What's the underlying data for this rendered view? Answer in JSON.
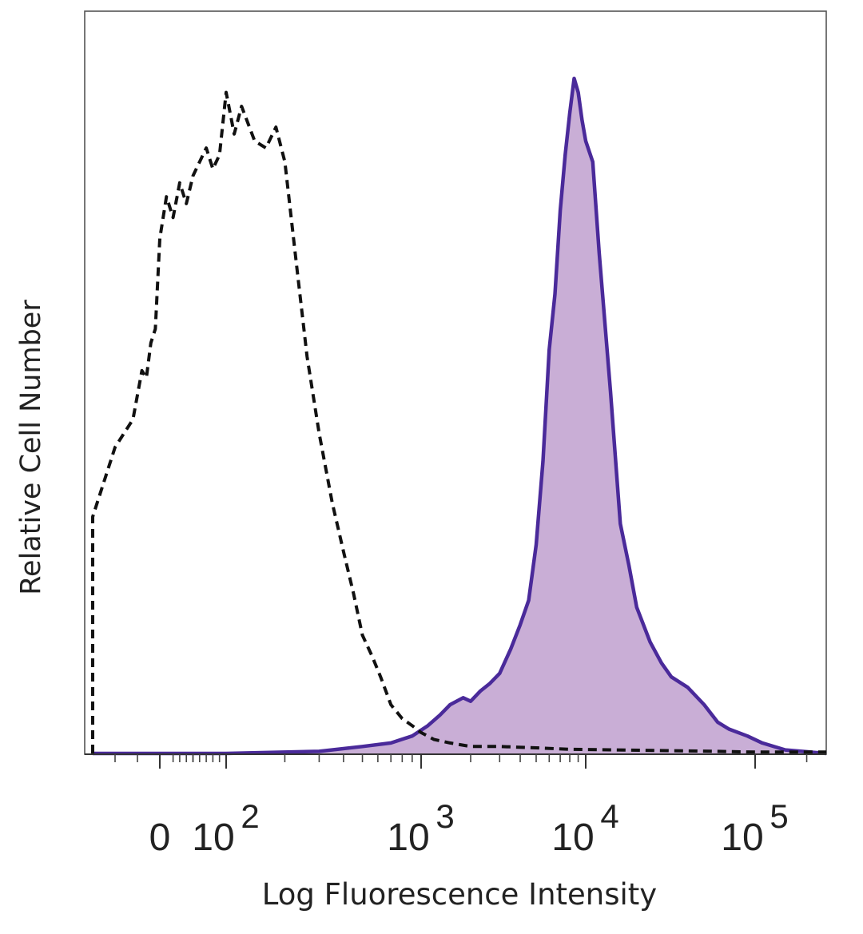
{
  "chart_data": {
    "type": "area",
    "title": "",
    "xlabel": "Log Fluorescence Intensity",
    "ylabel": "Relative Cell Number",
    "x_scale": "logicle",
    "x_ticks": [
      {
        "value": 0,
        "label": "0"
      },
      {
        "value": 100,
        "label": "10",
        "exp": "2"
      },
      {
        "value": 1000,
        "label": "10",
        "exp": "3"
      },
      {
        "value": 10000,
        "label": "10",
        "exp": "4"
      },
      {
        "value": 100000,
        "label": "10",
        "exp": "5"
      }
    ],
    "xlim": [
      -150,
      260000
    ],
    "ylim": [
      0,
      100
    ],
    "grid": false,
    "series": [
      {
        "style": "dashed",
        "color": "#111111",
        "filled": false,
        "x": [
          -150,
          -150,
          -140,
          -120,
          -100,
          -80,
          -60,
          -40,
          -30,
          -20,
          -10,
          0,
          10,
          20,
          30,
          40,
          50,
          60,
          70,
          80,
          90,
          100,
          110,
          120,
          140,
          160,
          180,
          200,
          230,
          260,
          300,
          350,
          400,
          450,
          500,
          560,
          620,
          700,
          800,
          900,
          1000,
          1200,
          1500,
          2000,
          3000,
          5000,
          8000,
          15000,
          30000,
          60000,
          100000,
          260000
        ],
        "y": [
          0,
          34,
          36,
          40,
          44,
          46,
          48,
          55,
          54,
          59,
          61,
          74,
          80,
          77,
          82,
          79,
          83,
          85,
          87,
          84,
          86,
          95,
          89,
          93,
          88,
          87,
          90,
          85,
          70,
          57,
          46,
          36,
          29,
          23,
          17,
          14,
          11,
          7,
          5,
          4,
          3,
          2,
          1.5,
          1,
          1,
          0.8,
          0.6,
          0.5,
          0.4,
          0.3,
          0.2,
          0.2
        ]
      },
      {
        "style": "solid",
        "color": "#4a2a9a",
        "fill_color": "#c9aed6",
        "filled": true,
        "x": [
          -150,
          100,
          300,
          500,
          700,
          900,
          1100,
          1300,
          1500,
          1800,
          2000,
          2300,
          2600,
          3000,
          3500,
          4000,
          4500,
          5000,
          5500,
          6000,
          6500,
          7000,
          7500,
          8000,
          8500,
          9000,
          9500,
          10000,
          11000,
          12000,
          14000,
          16000,
          18000,
          20000,
          24000,
          28000,
          32000,
          40000,
          50000,
          60000,
          70000,
          90000,
          110000,
          150000,
          260000
        ],
        "y": [
          0,
          0,
          0.3,
          1,
          1.5,
          2.5,
          4,
          5.5,
          7,
          8,
          7.5,
          9,
          10,
          11.5,
          15,
          18.5,
          22,
          30,
          42,
          58,
          66,
          78,
          86,
          92,
          97,
          95,
          91,
          88,
          85,
          72,
          52,
          33,
          27,
          21,
          16,
          13,
          11,
          9.5,
          7,
          4.5,
          3.5,
          2.5,
          1.5,
          0.5,
          0
        ]
      }
    ]
  }
}
